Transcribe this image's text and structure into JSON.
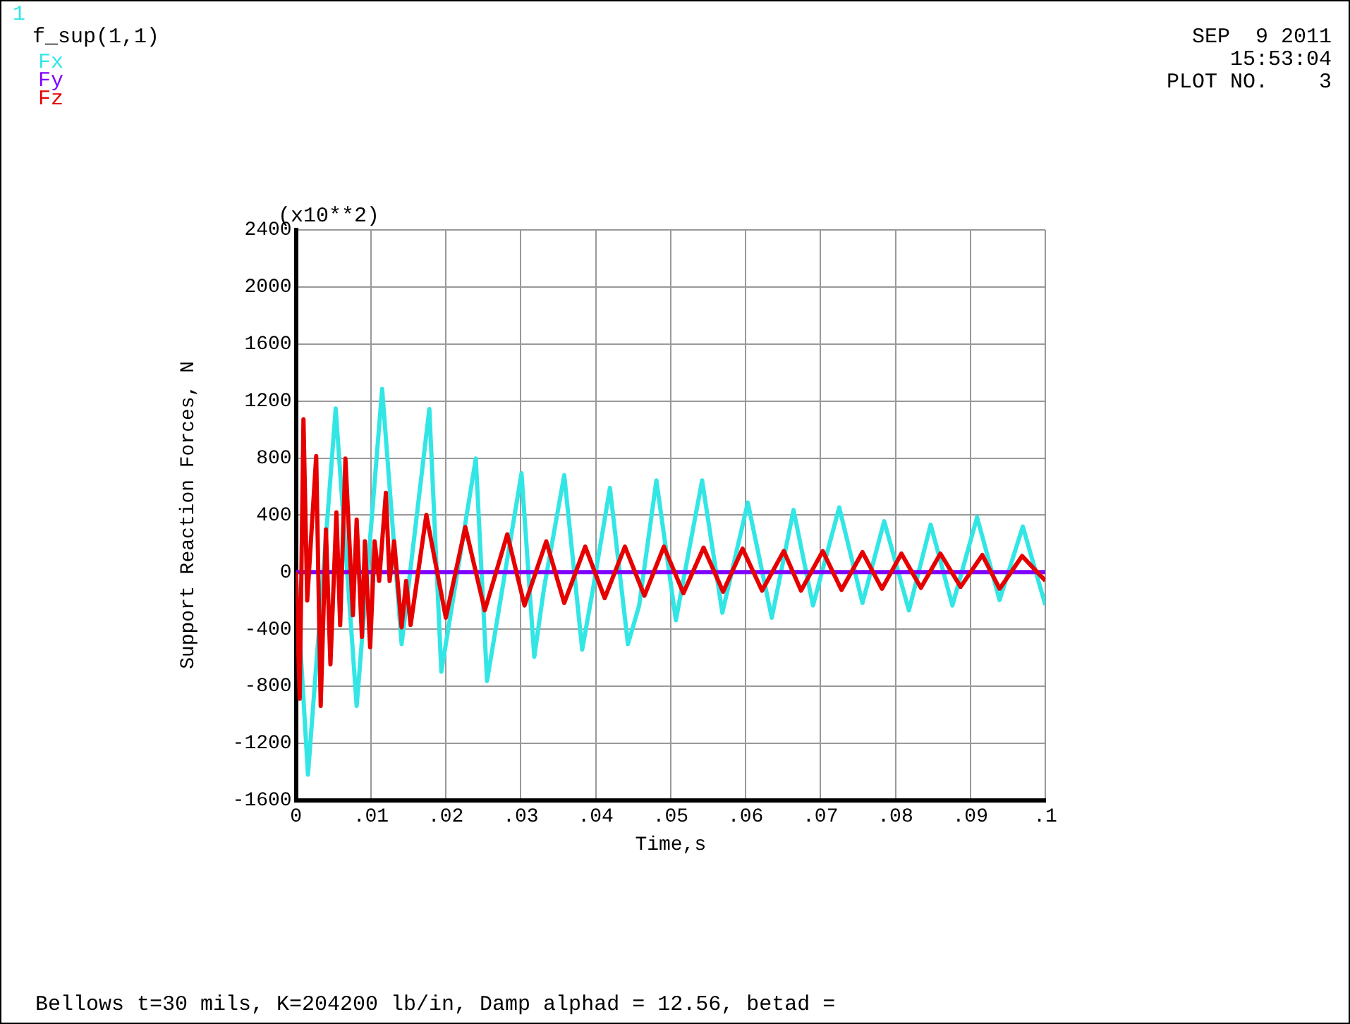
{
  "chart_data": {
    "type": "line",
    "title": "f_sup(1,1)",
    "xlabel": "Time,s",
    "ylabel": "Support Reaction Forces, N",
    "annotations": [
      "1",
      "(x10**2)",
      "SEP  9 2011",
      "15:53:04",
      "PLOT NO.    3",
      "Bellows t=30 mils, K=204200 lb/in, Damp alphad = 12.56, betad ="
    ],
    "xlim": [
      0,
      0.1
    ],
    "xticks": [
      0,
      {
        "value": 0.01,
        "label": ".01"
      },
      {
        "value": 0.02,
        "label": ".02"
      },
      {
        "value": 0.03,
        "label": ".03"
      },
      {
        "value": 0.04,
        "label": ".04"
      },
      {
        "value": 0.05,
        "label": ".05"
      },
      {
        "value": 0.06,
        "label": ".06"
      },
      {
        "value": 0.07,
        "label": ".07"
      },
      {
        "value": 0.08,
        "label": ".08"
      },
      {
        "value": 0.09,
        "label": ".09"
      },
      {
        "value": 0.1,
        "label": ".1"
      }
    ],
    "ylim": [
      -1600,
      2400
    ],
    "yticks": [
      -1600,
      -1200,
      -800,
      -400,
      0,
      400,
      800,
      1200,
      1600,
      2000,
      2400
    ],
    "grid": true,
    "legend": "top left",
    "marker": "none",
    "line_style": "solid",
    "series": [
      {
        "name": "Fx",
        "color": "#33e6e6",
        "x": [
          0,
          0.0016,
          0.0053,
          0.0081,
          0.0115,
          0.0141,
          0.0178,
          0.0194,
          0.024,
          0.0255,
          0.0301,
          0.0318,
          0.0331,
          0.0358,
          0.0382,
          0.0396,
          0.0419,
          0.0443,
          0.0458,
          0.0481,
          0.0507,
          0.0542,
          0.0569,
          0.0603,
          0.0635,
          0.0664,
          0.069,
          0.0725,
          0.0756,
          0.0785,
          0.0818,
          0.0847,
          0.0876,
          0.0909,
          0.0939,
          0.097,
          0.1
        ],
        "values": [
          0,
          -1420,
          1147,
          -938,
          1285,
          -505,
          1144,
          -698,
          797,
          -763,
          694,
          -594,
          -113,
          680,
          -543,
          -130,
          591,
          -505,
          -234,
          643,
          -337,
          643,
          -285,
          488,
          -320,
          436,
          -234,
          454,
          -216,
          357,
          -268,
          333,
          -234,
          385,
          -196,
          320,
          -230
        ]
      },
      {
        "name": "Fy",
        "color": "#8000ff",
        "x": [
          0,
          0.1
        ],
        "values": [
          0,
          0
        ]
      },
      {
        "name": "Fz",
        "color": "#e60000",
        "x": [
          0,
          0.0005,
          0.001,
          0.0015,
          0.0027,
          0.0033,
          0.004,
          0.0046,
          0.0054,
          0.0059,
          0.0066,
          0.0076,
          0.0081,
          0.0088,
          0.0092,
          0.0099,
          0.0105,
          0.0111,
          0.012,
          0.0125,
          0.0131,
          0.0141,
          0.0147,
          0.0153,
          0.0174,
          0.02,
          0.0226,
          0.0252,
          0.0282,
          0.0305,
          0.0334,
          0.0358,
          0.0386,
          0.0412,
          0.0439,
          0.0465,
          0.0491,
          0.0517,
          0.0544,
          0.057,
          0.0596,
          0.0622,
          0.0651,
          0.0674,
          0.0703,
          0.0728,
          0.0756,
          0.0782,
          0.0808,
          0.0834,
          0.086,
          0.0887,
          0.0916,
          0.0939,
          0.0969,
          0.1
        ],
        "values": [
          0,
          -887,
          1072,
          -199,
          814,
          -938,
          299,
          -646,
          419,
          -371,
          797,
          -302,
          368,
          -454,
          216,
          -526,
          216,
          -62,
          557,
          -62,
          216,
          -388,
          -62,
          -371,
          402,
          -320,
          316,
          -268,
          265,
          -234,
          216,
          -216,
          179,
          -182,
          179,
          -165,
          179,
          -148,
          172,
          -137,
          165,
          -130,
          148,
          -130,
          148,
          -125,
          140,
          -117,
          130,
          -110,
          130,
          -103,
          120,
          -117,
          113,
          -60
        ]
      }
    ]
  }
}
